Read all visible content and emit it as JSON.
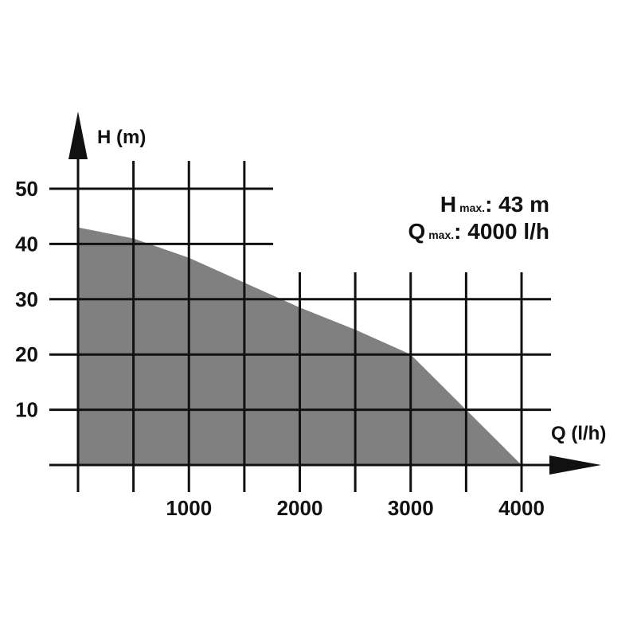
{
  "chart_data": {
    "type": "area",
    "x": [
      0,
      500,
      1000,
      1500,
      2000,
      2500,
      3000,
      3500,
      4000
    ],
    "values": [
      43,
      41,
      37.5,
      33,
      28.5,
      24.5,
      20,
      10,
      0
    ],
    "color": "#808080",
    "xlabel": "Q (l/h)",
    "ylabel": "H (m)",
    "xlim": [
      0,
      4000
    ],
    "ylim": [
      0,
      50
    ],
    "x_ticks": [
      "1000",
      "2000",
      "3000",
      "4000"
    ],
    "y_ticks": [
      "10",
      "20",
      "30",
      "40",
      "50"
    ],
    "grid": true,
    "annotations": {
      "hmax_symbol": "H",
      "hmax_sub": "max.",
      "hmax_value": ": 43 m",
      "qmax_symbol": "Q",
      "qmax_sub": "max.",
      "qmax_value": ": 4000 l/h"
    }
  }
}
